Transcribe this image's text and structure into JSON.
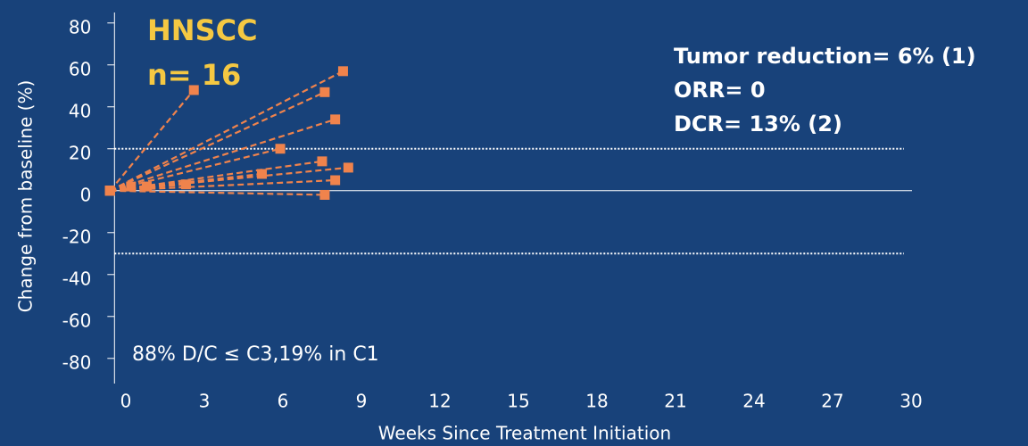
{
  "chart_data": {
    "type": "line",
    "title": "HNSCC",
    "subtitle": "n= 16",
    "annotations": [
      "Tumor reduction= 6% (1)",
      "ORR= 0",
      "DCR= 13% (2)"
    ],
    "footnote": "88% D/C ≤ C3,19% in C1",
    "x_label": "Weeks Since Treatment Initiation",
    "y_label": "Change from baseline (%)",
    "color": "#f0834c",
    "reference_lines": [
      20,
      -30
    ],
    "zero_line": true,
    "xlim": [
      -0.5,
      30
    ],
    "xticks": [
      0,
      3,
      6,
      9,
      12,
      15,
      18,
      21,
      24,
      27,
      30
    ],
    "ylim": [
      -92,
      85
    ],
    "yticks": [
      -80,
      -60,
      -40,
      -20,
      0,
      20,
      40,
      60,
      80
    ],
    "series": [
      {
        "x": [
          -0.6,
          2.6
        ],
        "values": [
          0,
          48
        ]
      },
      {
        "x": [
          -0.6,
          8.3
        ],
        "values": [
          0,
          57
        ]
      },
      {
        "x": [
          -0.6,
          7.6
        ],
        "values": [
          0,
          47
        ]
      },
      {
        "x": [
          -0.6,
          8.0
        ],
        "values": [
          0,
          34
        ]
      },
      {
        "x": [
          -0.6,
          5.9
        ],
        "values": [
          0,
          20
        ]
      },
      {
        "x": [
          -0.6,
          7.5
        ],
        "values": [
          0,
          14
        ]
      },
      {
        "x": [
          -0.6,
          8.5
        ],
        "values": [
          0,
          11
        ]
      },
      {
        "x": [
          -0.6,
          5.2
        ],
        "values": [
          0,
          8
        ]
      },
      {
        "x": [
          -0.6,
          8.0
        ],
        "values": [
          0,
          5
        ]
      },
      {
        "x": [
          -0.6,
          7.6
        ],
        "values": [
          0,
          -2
        ]
      },
      {
        "x": [
          -0.6,
          0.2
        ],
        "values": [
          0,
          2
        ]
      },
      {
        "x": [
          -0.6,
          0.8
        ],
        "values": [
          0,
          2
        ]
      },
      {
        "x": [
          -0.6,
          2.3
        ],
        "values": [
          0,
          3
        ]
      }
    ]
  }
}
